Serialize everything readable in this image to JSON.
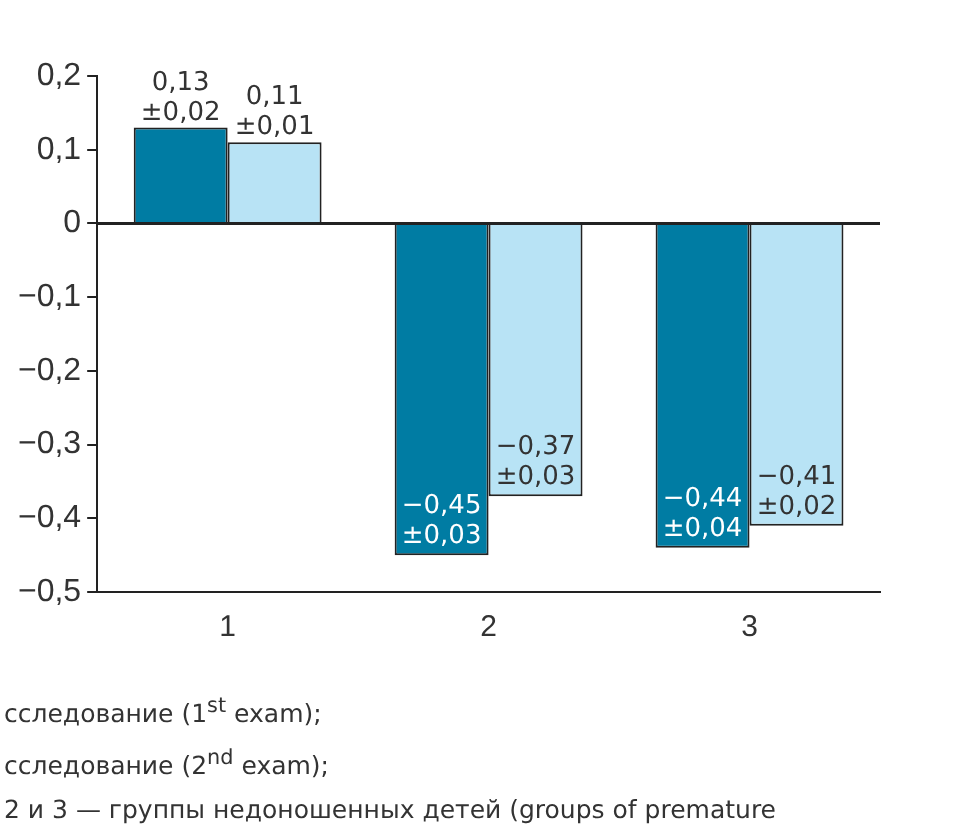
{
  "chart_data": {
    "type": "bar",
    "categories": [
      "1",
      "2",
      "3"
    ],
    "series": [
      {
        "color": "#007ca3",
        "values": [
          0.13,
          -0.45,
          -0.44
        ],
        "value_labels": [
          "0,13 ±0,02",
          "−0,45 ±0,03",
          "−0,44 ±0,04"
        ]
      },
      {
        "color": "#b8e3f5",
        "values": [
          0.11,
          -0.37,
          -0.41
        ],
        "value_labels": [
          "0,11 ±0,01",
          "−0,37 ±0,03",
          "−0,41 ±0,02"
        ]
      }
    ],
    "ylim": [
      -0.5,
      0.2
    ],
    "yticks": [
      {
        "value": 0.2,
        "label": "0,2"
      },
      {
        "value": 0.1,
        "label": "0,1"
      },
      0,
      {
        "value": -0.1,
        "label": "−0,1"
      },
      {
        "value": -0.2,
        "label": "−0,2"
      },
      {
        "value": -0.3,
        "label": "−0,3"
      },
      {
        "value": -0.4,
        "label": "−0,4"
      },
      {
        "value": -0.5,
        "label": "−0,5"
      }
    ],
    "grid": false,
    "legend": false,
    "ref_lines": [
      {
        "axis": "y",
        "value": 0,
        "color": "#222222"
      }
    ],
    "annotations": [
      "сследование (1$^{st}$ exam);",
      "сследование (2$^{nd}$ exam);",
      "2 и 3 — группы недоношенных детей (groups of premature"
    ]
  }
}
